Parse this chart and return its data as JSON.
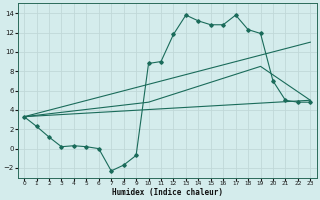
{
  "xlabel": "Humidex (Indice chaleur)",
  "bg_color": "#d4ecec",
  "grid_color": "#c0d8d8",
  "line_color": "#1a6b5a",
  "xlim": [
    -0.5,
    23.5
  ],
  "ylim": [
    -3,
    15
  ],
  "xticks": [
    0,
    1,
    2,
    3,
    4,
    5,
    6,
    7,
    8,
    9,
    10,
    11,
    12,
    13,
    14,
    15,
    16,
    17,
    18,
    19,
    20,
    21,
    22,
    23
  ],
  "yticks": [
    -2,
    0,
    2,
    4,
    6,
    8,
    10,
    12,
    14
  ],
  "curve1_x": [
    0,
    1,
    2,
    3,
    4,
    5,
    6,
    7,
    8,
    9,
    10,
    11,
    12,
    13,
    14,
    15,
    16,
    17,
    18,
    19,
    20,
    21,
    22,
    23
  ],
  "curve1_y": [
    3.3,
    2.3,
    1.2,
    0.2,
    0.3,
    0.2,
    0.0,
    -2.3,
    -1.7,
    -0.7,
    8.8,
    9.0,
    11.8,
    13.8,
    13.2,
    12.8,
    12.8,
    13.8,
    12.3,
    11.9,
    7.0,
    5.0,
    4.8,
    4.8
  ],
  "curve2_x": [
    0,
    23
  ],
  "curve2_y": [
    3.3,
    5.0
  ],
  "curve3_x": [
    0,
    23
  ],
  "curve3_y": [
    3.3,
    11.0
  ],
  "curve4_x": [
    0,
    10,
    19,
    23
  ],
  "curve4_y": [
    3.3,
    4.8,
    8.5,
    5.0
  ]
}
